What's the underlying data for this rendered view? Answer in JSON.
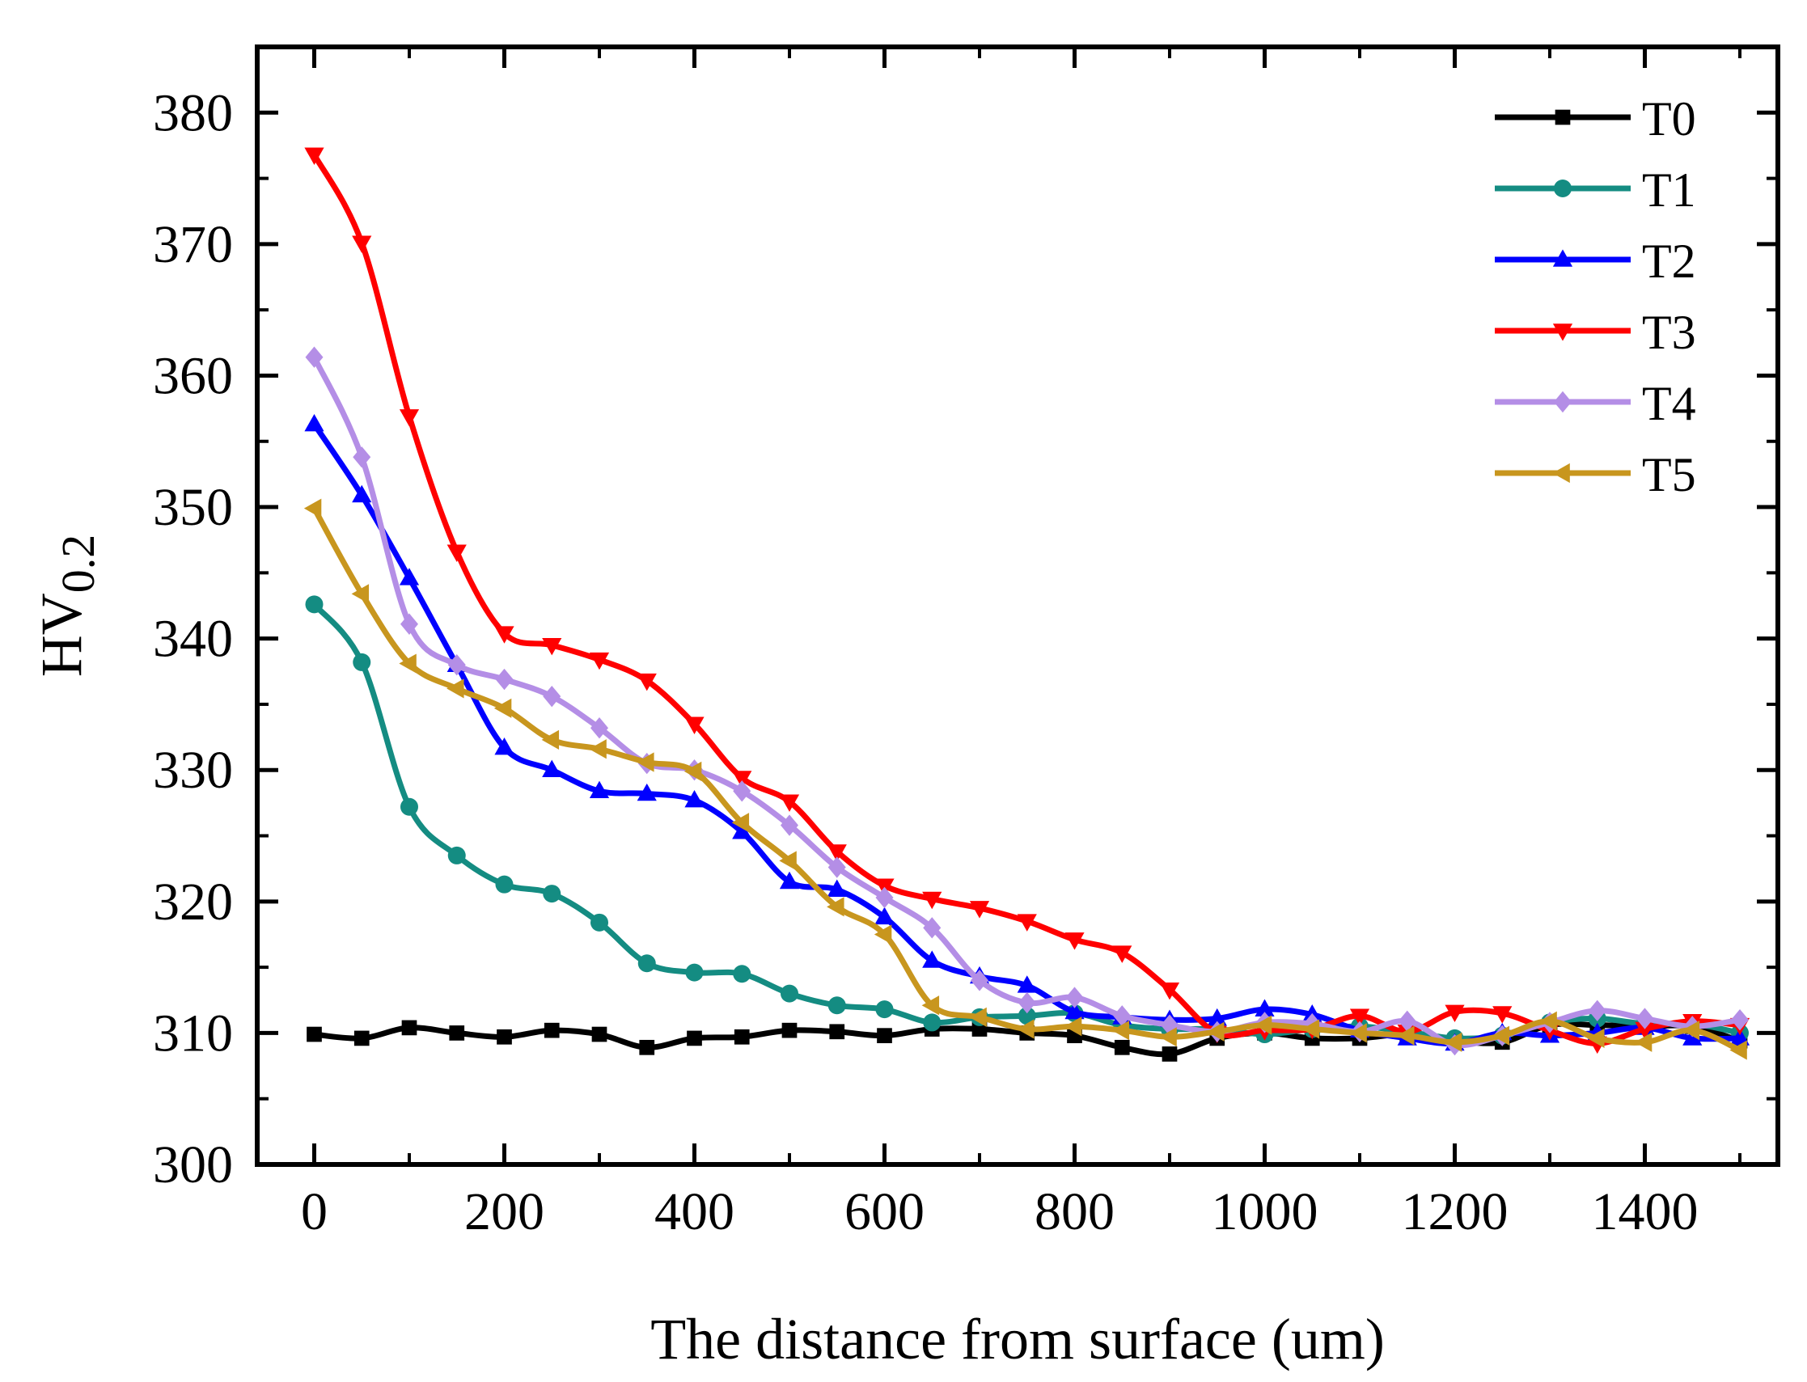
{
  "chart_data": {
    "type": "line",
    "title": "",
    "xlabel": "The distance from surface (um)",
    "ylabel_main": "HV",
    "ylabel_sub": "0.2",
    "xlim": [
      -60,
      1540
    ],
    "ylim": [
      300,
      385
    ],
    "xticks": [
      0,
      200,
      400,
      600,
      800,
      1000,
      1200,
      1400
    ],
    "xminor": [
      100,
      300,
      500,
      700,
      900,
      1100,
      1300,
      1500
    ],
    "yticks": [
      300,
      310,
      320,
      330,
      340,
      350,
      360,
      370,
      380
    ],
    "yminor": [
      305,
      315,
      325,
      335,
      345,
      355,
      365,
      375
    ],
    "legend_position": "top-right",
    "x": [
      0,
      50,
      100,
      150,
      200,
      250,
      300,
      350,
      400,
      450,
      500,
      550,
      600,
      650,
      700,
      750,
      800,
      850,
      900,
      950,
      1000,
      1050,
      1100,
      1150,
      1200,
      1250,
      1300,
      1350,
      1400,
      1450,
      1500
    ],
    "series": [
      {
        "name": "T0",
        "color": "#000000",
        "marker": "square",
        "values": [
          309.9,
          309.6,
          310.4,
          310.0,
          309.7,
          310.2,
          309.9,
          308.9,
          309.6,
          309.7,
          310.2,
          310.1,
          309.8,
          310.3,
          310.3,
          310.0,
          309.8,
          308.9,
          308.4,
          309.6,
          310.0,
          309.6,
          309.6,
          309.9,
          309.4,
          309.3,
          310.6,
          310.6,
          310.5,
          310.5,
          309.4
        ]
      },
      {
        "name": "T1",
        "color": "#148c82",
        "marker": "circle",
        "values": [
          342.6,
          338.2,
          327.2,
          323.5,
          321.3,
          320.6,
          318.4,
          315.3,
          314.6,
          314.5,
          313.0,
          312.1,
          311.8,
          310.8,
          311.2,
          311.3,
          311.5,
          310.6,
          310.3,
          310.3,
          309.9,
          310.3,
          310.5,
          310.1,
          309.6,
          309.8,
          310.8,
          311.1,
          310.7,
          310.7,
          310.0
        ]
      },
      {
        "name": "T2",
        "color": "#0000ff",
        "marker": "triangle-up",
        "values": [
          356.3,
          350.9,
          344.6,
          338.0,
          331.7,
          330.0,
          328.4,
          328.2,
          327.7,
          325.3,
          321.5,
          320.9,
          318.8,
          315.5,
          314.3,
          313.6,
          311.6,
          311.2,
          311.0,
          311.1,
          311.8,
          311.4,
          310.2,
          309.6,
          309.2,
          310.0,
          309.8,
          310.0,
          310.4,
          309.6,
          309.6
        ]
      },
      {
        "name": "T3",
        "color": "#ff0000",
        "marker": "triangle-down",
        "values": [
          376.8,
          370.1,
          356.9,
          346.6,
          340.4,
          339.5,
          338.4,
          336.8,
          333.5,
          329.4,
          327.6,
          323.8,
          321.2,
          320.2,
          319.5,
          318.5,
          317.1,
          316.1,
          313.3,
          310.0,
          310.2,
          310.3,
          311.3,
          310.1,
          311.6,
          311.5,
          310.2,
          309.2,
          310.3,
          310.9,
          310.6
        ]
      },
      {
        "name": "T4",
        "color": "#b48ee6",
        "marker": "diamond",
        "values": [
          361.4,
          353.8,
          341.1,
          338.0,
          336.9,
          335.6,
          333.2,
          330.5,
          330.0,
          328.4,
          325.8,
          322.6,
          320.3,
          318.0,
          314.0,
          312.3,
          312.7,
          311.3,
          310.6,
          310.1,
          310.8,
          310.7,
          310.1,
          310.9,
          309.1,
          309.8,
          310.8,
          311.7,
          311.1,
          310.5,
          311.0
        ]
      },
      {
        "name": "T5",
        "color": "#c8961e",
        "marker": "triangle-left",
        "values": [
          349.9,
          343.4,
          338.1,
          336.2,
          334.7,
          332.3,
          331.6,
          330.6,
          329.9,
          326.0,
          323.1,
          319.6,
          317.5,
          312.1,
          311.2,
          310.3,
          310.5,
          310.2,
          309.7,
          310.1,
          310.6,
          310.3,
          310.0,
          309.8,
          309.3,
          309.8,
          310.9,
          309.6,
          309.3,
          310.2,
          308.7
        ]
      }
    ]
  }
}
